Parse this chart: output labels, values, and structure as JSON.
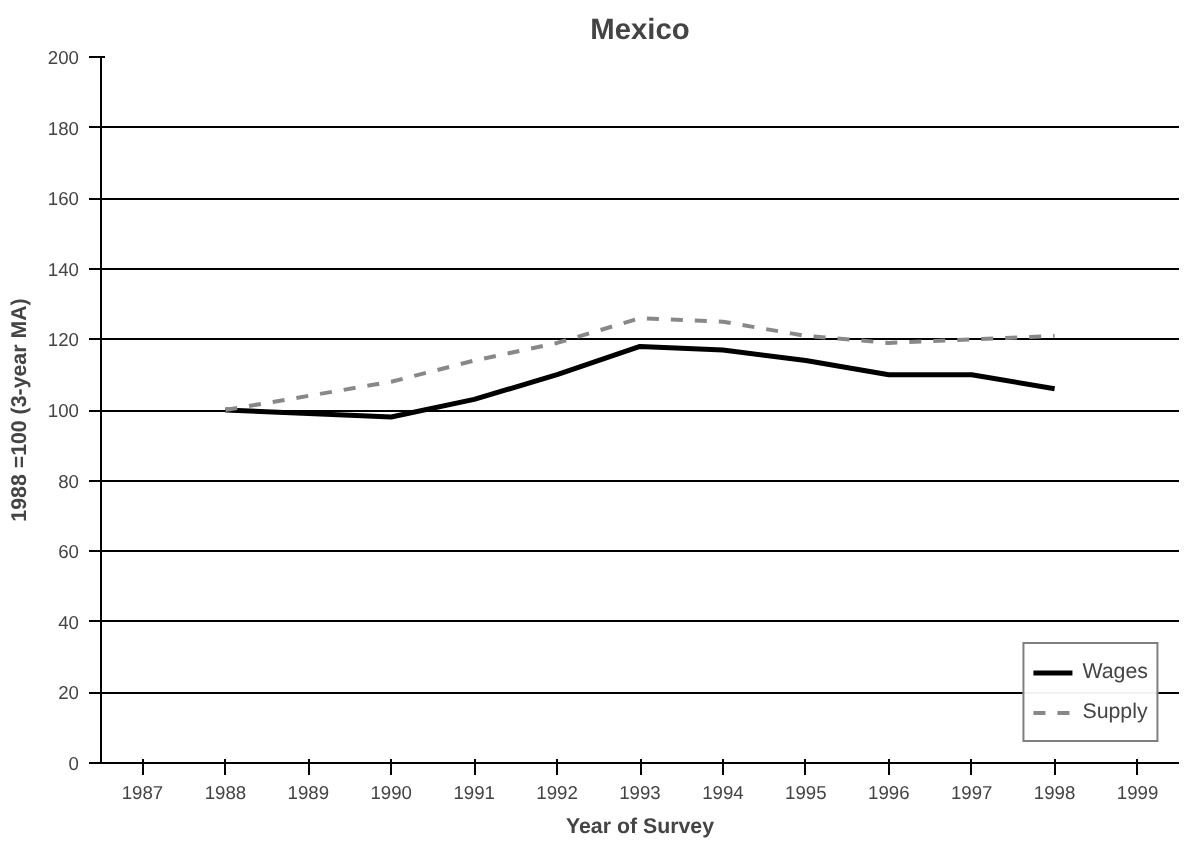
{
  "chart_data": {
    "type": "line",
    "title": "Mexico",
    "xlabel": "Year of Survey",
    "ylabel": "1988 =100 (3-year MA)",
    "categories": [
      "1987",
      "1988",
      "1989",
      "1990",
      "1991",
      "1992",
      "1993",
      "1994",
      "1995",
      "1996",
      "1997",
      "1998",
      "1999"
    ],
    "series": [
      {
        "name": "Wages",
        "color": "#000000",
        "line_style": "solid",
        "values": [
          null,
          100,
          99,
          98,
          103,
          110,
          118,
          117,
          114,
          110,
          110,
          106,
          null
        ]
      },
      {
        "name": "Supply",
        "color": "#888888",
        "line_style": "dashed",
        "values": [
          null,
          100,
          104,
          108,
          114,
          119,
          126,
          125,
          121,
          119,
          120,
          121,
          null
        ]
      }
    ],
    "ylim": [
      0,
      200
    ],
    "yticks": [
      0,
      20,
      40,
      60,
      80,
      100,
      120,
      140,
      160,
      180,
      200
    ],
    "grid": "y",
    "legend": "bottom right"
  }
}
